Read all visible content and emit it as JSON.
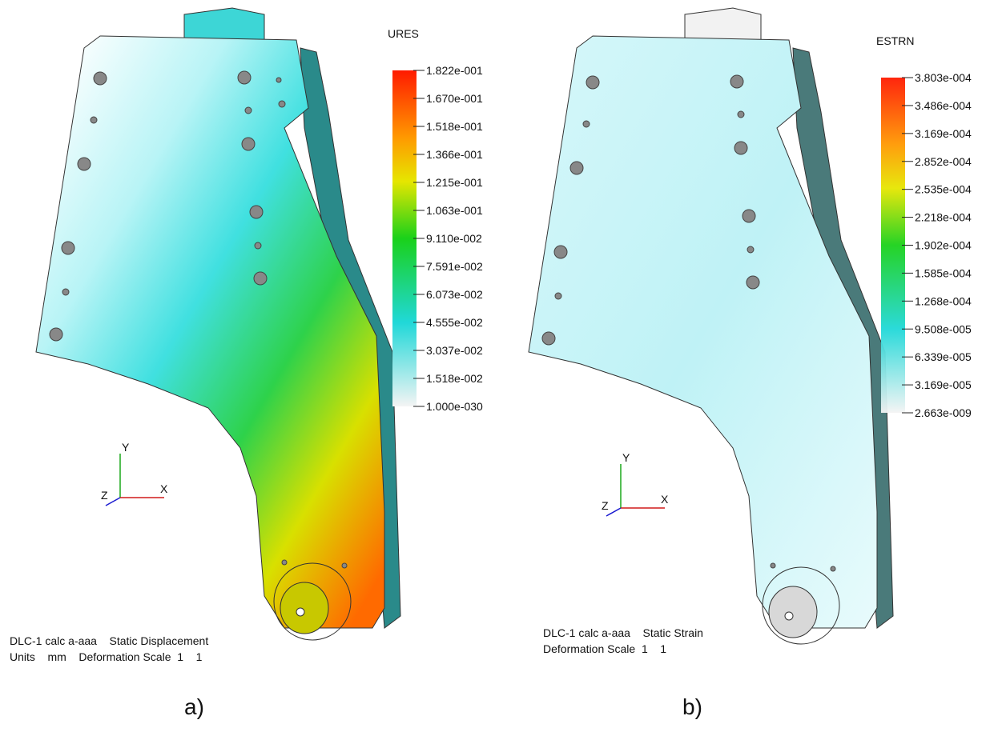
{
  "panels": [
    {
      "legend": {
        "title": "URES",
        "labels": [
          "1.822e-001",
          "1.670e-001",
          "1.518e-001",
          "1.366e-001",
          "1.215e-001",
          "1.063e-001",
          "9.110e-002",
          "7.591e-002",
          "6.073e-002",
          "4.555e-002",
          "3.037e-002",
          "1.518e-002",
          "1.000e-030"
        ]
      },
      "info": [
        "DLC-1 calc a-aaa    Static Displacement",
        "Units    mm    Deformation Scale  1    1"
      ],
      "triad": {
        "y": "Y",
        "z": "Z",
        "x": "X"
      },
      "caption": "a)"
    },
    {
      "legend": {
        "title": "ESTRN",
        "labels": [
          "3.803e-004",
          "3.486e-004",
          "3.169e-004",
          "2.852e-004",
          "2.535e-004",
          "2.218e-004",
          "1.902e-004",
          "1.585e-004",
          "1.268e-004",
          "9.508e-005",
          "6.339e-005",
          "3.169e-005",
          "2.663e-009"
        ]
      },
      "info": [
        "DLC-1 calc a-aaa    Static Strain",
        "Deformation Scale  1    1"
      ],
      "triad": {
        "y": "Y",
        "z": "Z",
        "x": "X"
      },
      "caption": "b)"
    }
  ]
}
